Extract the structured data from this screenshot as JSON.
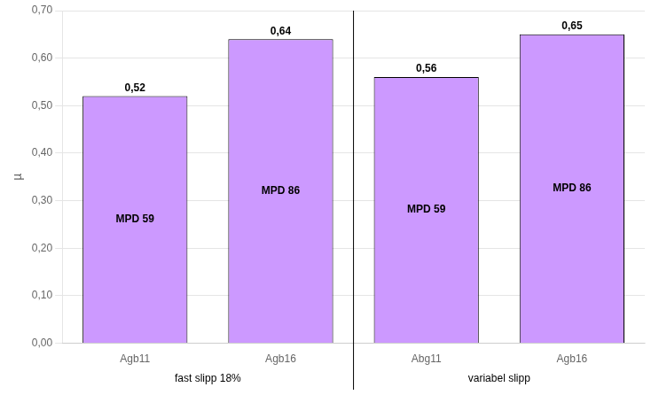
{
  "chart_data": {
    "type": "bar",
    "categories": [
      "Agb11",
      "Agb16",
      "Abg11",
      "Agb16"
    ],
    "values": [
      0.52,
      0.64,
      0.56,
      0.65
    ],
    "value_labels": [
      "0,52",
      "0,64",
      "0,56",
      "0,65"
    ],
    "data_labels": true,
    "bar_labels": [
      "MPD 59",
      "MPD 86",
      "MPD 59",
      "MPD 86"
    ],
    "groups": [
      {
        "label": "fast slipp 18%",
        "count": 2
      },
      {
        "label": "variabel slipp",
        "count": 2
      }
    ],
    "color": "#cc99ff",
    "ylabel": "µ",
    "ylim": [
      0.0,
      0.7
    ],
    "yticks": [
      {
        "value": 0.0,
        "label": "0,00"
      },
      {
        "value": 0.1,
        "label": "0,10"
      },
      {
        "value": 0.2,
        "label": "0,20"
      },
      {
        "value": 0.3,
        "label": "0,30"
      },
      {
        "value": 0.4,
        "label": "0,40"
      },
      {
        "value": 0.5,
        "label": "0,50"
      },
      {
        "value": 0.6,
        "label": "0,60"
      },
      {
        "value": 0.7,
        "label": "0,70"
      }
    ],
    "grid": true
  }
}
